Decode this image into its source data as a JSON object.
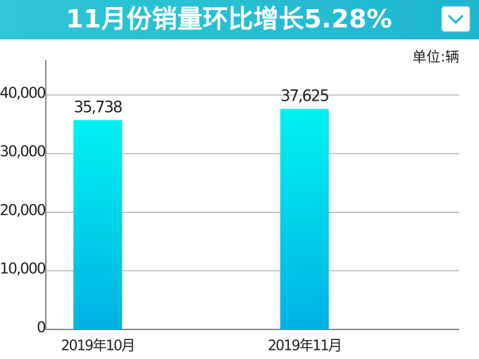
{
  "chart_data": {
    "type": "bar",
    "title": "11月份销量环比增长5.28%",
    "unit": "单位:辆",
    "categories": [
      "2019年10月",
      "2019年11月"
    ],
    "values": [
      35738,
      37625
    ],
    "value_labels": [
      "35,738",
      "37,625"
    ],
    "color": [
      "#00f2f2",
      "#00b2e2"
    ],
    "ylim": [
      0,
      46000
    ],
    "yticks": [
      0,
      {
        "value": 10000,
        "label": "10,000"
      },
      {
        "value": 20000,
        "label": "20,000"
      },
      {
        "value": 30000,
        "label": "30,000"
      },
      {
        "value": 40000,
        "label": "40,000"
      }
    ],
    "grid": true
  }
}
